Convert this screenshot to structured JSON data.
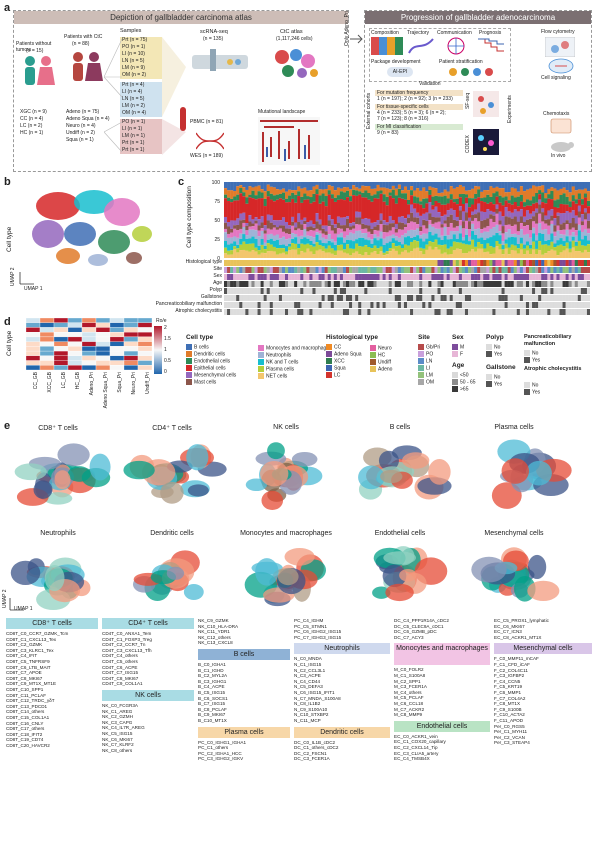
{
  "panel_labels": {
    "a": "a",
    "b": "b",
    "c": "c",
    "d": "d",
    "e": "e"
  },
  "a": {
    "left_title": "Depiction of gallbladder carcinoma atlas",
    "right_title": "Progression of gallbladder adenocarcinoma",
    "patients_without_tumors": "Patients without tumors",
    "patients_without_n": "(n = 15)",
    "patients_ctc": "Patients with CtC",
    "patients_ctc_n": "(n = 88)",
    "xgc": "XGC (n = 9)",
    "cc": "CC (n = 4)",
    "lc": "LC (n = 2)",
    "hc": "HC (n = 1)",
    "adeno": "Adeno (n = 75)",
    "adeno_squa": "Adeno Squa (n = 4)",
    "neuro": "Neuro (n = 4)",
    "undiff": "Undiff (n = 2)",
    "squa": "Squa (n = 1)",
    "samples_label": "Samples",
    "samples_top": [
      "Prt (n = 75)",
      "PO (n = 1)",
      "LI (n = 10)",
      "LN (n = 5)",
      "LM (n = 9)",
      "OM (n = 2)"
    ],
    "samples_mid": [
      "Prt (n = 4)",
      "LI (n = 4)",
      "LN (n = 5)",
      "LM (n = 2)",
      "OM (n = 4)",
      "PO (n = 1)",
      "LI (n = 1)",
      "LM (n = 1)",
      "Prt (n = 1)",
      "Prt (n = 1)"
    ],
    "scrna": "scRNA-seq",
    "scrna_n": "(n = 135)",
    "ctc_atlas": "CtC atlas",
    "ctc_atlas_n": "(1,117,246 cells)",
    "pbmc": "PBMC (n = 81)",
    "wes": "WES (n = 189)",
    "mutational": "Mutational landscape",
    "only_adeno": "Only Adeno_Pri",
    "composition": "Composition",
    "trajectory": "Trajectory",
    "communication": "Communication",
    "prognosis": "Prognosis",
    "package": "Package development",
    "patient_strat": "Patient stratification",
    "ai_epi": "AI-EPI",
    "validation": "Validation",
    "external": "External cohorts",
    "for_mut": "For mutation frequency",
    "mut_line": "1 (n = 197); 2 (n = 92); 3 (n = 233)",
    "for_tissue": "For tissue-specific cells",
    "tissue_line1": "4 (n = 233); 5 (n = 3); 6 (n = 2);",
    "tissue_line2": "7 (n = 123); 8 (n = 316)",
    "for_mi": "For MI classification",
    "mi_line": "9 (n = 83)",
    "sf_seq": "SF-seq",
    "codex": "CODEX",
    "experiments": "Experiments",
    "flow": "Flow cytometry",
    "cell_signaling": "Cell signaling",
    "chemotaxis": "Chemotaxis",
    "in_vivo": "In vivo"
  },
  "b": {
    "ylabel": "Cell type",
    "umap2": "UMAP 2",
    "umap1": "UMAP 1"
  },
  "c": {
    "ylabel": "Cell type composition",
    "yticks": [
      "100",
      "75",
      "50",
      "25",
      "0"
    ],
    "row_labels": [
      "Histological type",
      "Site",
      "Sex",
      "Age",
      "Polyp",
      "Gallstone",
      "Pancreaticobiliary malfunction",
      "Atrophic cholecystitis"
    ]
  },
  "d": {
    "ylabel": "Cell type",
    "legend_title": "Ro/e",
    "legend_ticks": [
      "2",
      "1.5",
      "1",
      "0.5",
      "0"
    ],
    "columns": [
      "CC_GB",
      "XCC_GB",
      "LC_GB",
      "HC_GB",
      "Adeno_Pri",
      "Adeno Squa_Pri",
      "Squa_Pri",
      "Neuro_Pri",
      "Undiff_Pri"
    ]
  },
  "legends": {
    "cell_type_title": "Cell type",
    "cell_types": [
      {
        "label": "B cells",
        "color": "#3f6fb5"
      },
      {
        "label": "Dendritic cells",
        "color": "#e07b2a"
      },
      {
        "label": "Endothelial cells",
        "color": "#2e8b57"
      },
      {
        "label": "Epithelial cells",
        "color": "#d62728"
      },
      {
        "label": "Mesenchymal cells",
        "color": "#9467bd"
      },
      {
        "label": "Mast cells",
        "color": "#8c564b"
      },
      {
        "label": "Monocytes and macrophages",
        "color": "#e377c2"
      },
      {
        "label": "Neutrophils",
        "color": "#9fb3d6"
      },
      {
        "label": "NK and T cells",
        "color": "#17becf"
      },
      {
        "label": "Plasma cells",
        "color": "#b5cf3b"
      },
      {
        "label": "NET cells",
        "color": "#f3c66d"
      }
    ],
    "histo_title": "Histological type",
    "histo": [
      {
        "label": "CC",
        "color": "#f08a24"
      },
      {
        "label": "Adeno Squa",
        "color": "#7c4a98"
      },
      {
        "label": "XCC",
        "color": "#2f7d4f"
      },
      {
        "label": "Squa",
        "color": "#3c64b0"
      },
      {
        "label": "LC",
        "color": "#d3332d"
      },
      {
        "label": "Neuro",
        "color": "#e35fa0"
      },
      {
        "label": "HC",
        "color": "#8cbd52"
      },
      {
        "label": "Undiff",
        "color": "#a05a2c"
      },
      {
        "label": "Adeno",
        "color": "#e8c35a"
      }
    ],
    "site_title": "Site",
    "site": [
      {
        "label": "Gb/Pri",
        "color": "#b64b4b"
      },
      {
        "label": "PO",
        "color": "#c9a0dc"
      },
      {
        "label": "LN",
        "color": "#5b8cc8"
      },
      {
        "label": "LI",
        "color": "#6cb8a4"
      },
      {
        "label": "LM",
        "color": "#93c27b"
      },
      {
        "label": "OM",
        "color": "#a7a7a7"
      }
    ],
    "sex_title": "Sex",
    "sex": [
      {
        "label": "M",
        "color": "#7d4c9c"
      },
      {
        "label": "F",
        "color": "#e7b6d6"
      }
    ],
    "age_title": "Age",
    "age": [
      {
        "label": "<50",
        "color": "#d9d9d9"
      },
      {
        "label": "50 - 65",
        "color": "#8c8c8c"
      },
      {
        "label": ">65",
        "color": "#3a3a3a"
      }
    ],
    "polyp_title": "Polyp",
    "polyp": [
      {
        "label": "No",
        "color": "#dddddd"
      },
      {
        "label": "Yes",
        "color": "#555555"
      }
    ],
    "gallstone_title": "Gallstone",
    "gallstone": [
      {
        "label": "No",
        "color": "#dddddd"
      },
      {
        "label": "Yes",
        "color": "#555555"
      }
    ],
    "pbm_title": "Pancreaticobiliary malfunction",
    "pbm": [
      {
        "label": "No",
        "color": "#dddddd"
      },
      {
        "label": "Yes",
        "color": "#555555"
      }
    ],
    "atrophic_title": "Atrophic cholecystitis",
    "atrophic": [
      {
        "label": "No",
        "color": "#dddddd"
      },
      {
        "label": "Yes",
        "color": "#555555"
      }
    ]
  },
  "e": {
    "umap2": "UMAP 2",
    "umap1": "UMAP 1",
    "titles_row1": [
      "CD8⁺ T cells",
      "CD4⁺ T cells",
      "NK cells",
      "B cells",
      "Plasma cells"
    ],
    "titles_row2": [
      "Neutrophils",
      "Dendritic cells",
      "Monocytes and macrophages",
      "Endothelial cells",
      "Mesenchymal cells"
    ]
  },
  "clusters": {
    "cd8_title": "CD8⁺ T cells",
    "cd8": [
      "CD8T_C0_CCR7_GZMK_Tcm",
      "CD8T_C1_CXCL13_Tex",
      "CD8T_C2_GZMK",
      "CD8T_C3_KLRC1_Tex",
      "CD8T_C4_IFIT",
      "CD8T_C5_TNFRSF9",
      "CD8T_C6_LTB_MAIT",
      "CD8T_C7_APOE",
      "CD8T_C8_MKI67",
      "CD8T_C9_MT1X_MT1E",
      "CD8T_C10_SPP1",
      "CD8T_C11_PCLAF",
      "CD8T_C12_TRDC_γδT",
      "CD8T_C13_PDCD1",
      "CD8T_C14_others",
      "CD8T_C15_COL1A1",
      "CD8T_C16_CNLY",
      "CD8T_C17_others",
      "CD8T_C18_IFIT2",
      "CD8T_C19_CD74",
      "CD8T_C20_HAVCR2"
    ],
    "cd4_title": "CD4⁺ T cells",
    "cd4": [
      "CD4T_C0_ANXA1_Tem",
      "CD4T_C1_FOXP3_Treg",
      "CD4T_C2_CCR7_Tn",
      "CD4T_C3_CXCL13_Tfh",
      "CD4T_C4_others",
      "CD4T_C5_others",
      "CD4T_C6_ACPE",
      "CD4T_C7_ISG15",
      "CD4T_C8_MKI67",
      "CD4T_C9_COL1A1"
    ],
    "nk_title": "NK cells",
    "nk": [
      "NK_C0_FCGR3A",
      "NK_C1_AREG",
      "NK_C2_GZMH",
      "NK_C3_CAPG",
      "NK_C4_IL7R_AREG",
      "NK_C5_ISG15",
      "NK_C6_MKI67",
      "NK_C7_KLRF2",
      "NK_C8_others"
    ],
    "misc_top": [
      "NK_C9_GZMK",
      "NK_C10_HLA-DRA",
      "NK_C11_YDR1",
      "NK_C12_others",
      "NK_C13_CXCL8"
    ],
    "b_title": "B cells",
    "b": [
      "B_C0_IGHA1",
      "B_C1_IGHD",
      "B_C2_MYL2A",
      "B_C3_IGHG1",
      "B_C4_ACPE",
      "B_C5_ISG15",
      "B_C6_SOCS1",
      "B_C7_ISG15",
      "B_C8_PCLAF",
      "B_C9_MKI67",
      "B_C10_MT1X"
    ],
    "plasma_title": "Plasma cells",
    "plasma": [
      "PC_C0_IGHG1_IGHA1",
      "PC_C1_others",
      "PC_C2_IGHA1_HCC",
      "PC_C3_IGHG2_IGKV"
    ],
    "pc_top": [
      "PC_C4_IGHM",
      "PC_C5_STMN1",
      "PC_C6_IGHG2_ISG15",
      "PC_C7_IGHG3_ISG15"
    ],
    "neut_title": "Neutrophils",
    "neut": [
      "N_C0_MNDA",
      "N_C1_ISG15",
      "N_C2_CCL3L1",
      "N_C3_ACPE",
      "N_C4_CD44",
      "N_C5_DEFA3",
      "N_C6_ISG15_IFIT1",
      "N_C7_MNDA_S100A8",
      "N_C8_IL1B2",
      "N_C9_S100A10",
      "N_C10_STXBP2",
      "N_C11_MCP"
    ],
    "dc_title": "Dendritic cells",
    "dc": [
      "DC_C0_IL1B_cDC2",
      "DC_C1_others_cDC2",
      "DC_C2_FSCN1",
      "DC_C3_FCER1A"
    ],
    "dc_top": [
      "DC_C4_PPP1R14A_cDC2",
      "DC_C5_CLEC9A_cDC1",
      "DC_C6_GZMB_pDC",
      "DC_C7_ACY3"
    ],
    "mono_title": "Monocytes and macrophages",
    "mono": [
      "M_C0_FOLR2",
      "M_C1_S100A8",
      "M_C2_SPP1",
      "M_C3_FCER1A",
      "M_C4_others",
      "M_C5_PCLAF",
      "M_C6_CCL18",
      "M_C7_ACKR2",
      "M_C8_MMP9"
    ],
    "endo_title": "Endothelial cells",
    "endo": [
      "EC_C0_ACKR1_vein",
      "EC_C1_COX20_capillary",
      "EC_C2_CXCL14_Tip",
      "EC_C3_CLIA5_artery",
      "EC_C4_TMSB4X"
    ],
    "ec_top": [
      "EC_C5_PROX1_lymphatic",
      "EC_C6_MKI67",
      "EC_C7_ICN3",
      "EC_C8_ACKR1_MT1X"
    ],
    "mes_title": "Mesenchymal cells",
    "mes": [
      "F_C0_MMP11_mCAF",
      "F_C1_CFD_iCAF",
      "F_C2_COL4C11",
      "F_C3_IGFBP2",
      "F_C4_CCN5",
      "F_C5_KRT19",
      "F_C6_MMP1",
      "F_C7_COL4A2",
      "F_C8_MT1X",
      "F_C9_S100B",
      "F_C10_ACTA2",
      "F_C11_APOD",
      "Per_C0_RGS5",
      "Per_C1_MYH11",
      "Per_C2_VCAN",
      "Per_C3_STEAP4"
    ]
  }
}
